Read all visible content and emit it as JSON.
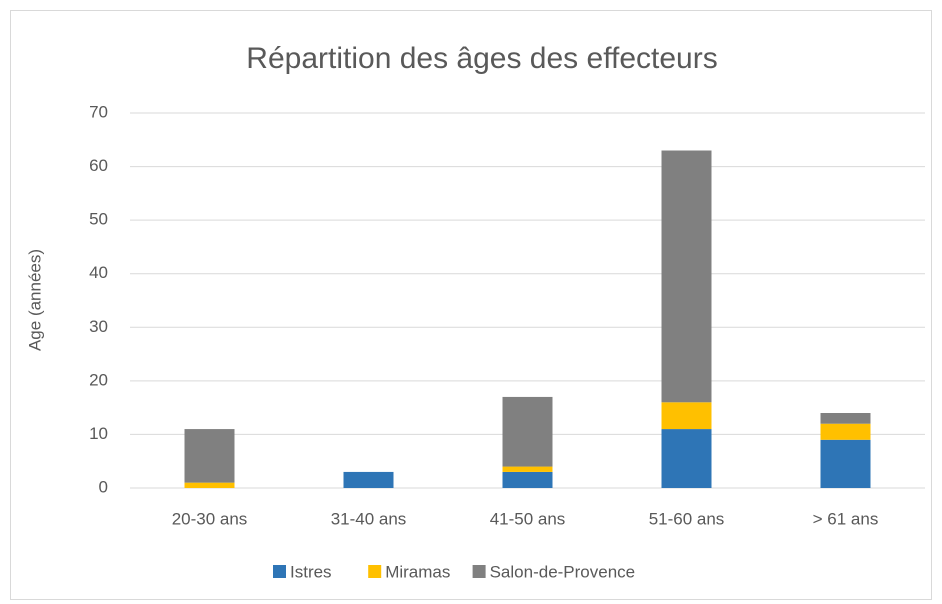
{
  "chart_data": {
    "type": "stacked_bar",
    "title": "Répartition des âges des effecteurs",
    "ylabel": "Age (années)",
    "categories": [
      "20-30 ans",
      "31-40 ans",
      "41-50 ans",
      "51-60 ans",
      "> 61 ans"
    ],
    "series": [
      {
        "name": "Istres",
        "color": "#2e75b6",
        "values": [
          0,
          3,
          3,
          11,
          9
        ]
      },
      {
        "name": "Miramas",
        "color": "#ffc000",
        "values": [
          1,
          0,
          1,
          5,
          3
        ]
      },
      {
        "name": "Salon-de-Provence",
        "color": "#808080",
        "values": [
          10,
          0,
          13,
          47,
          2
        ]
      }
    ],
    "ylim": [
      0,
      70
    ],
    "yticks": [
      0,
      10,
      20,
      30,
      40,
      50,
      60,
      70
    ],
    "grid": true,
    "legend": "bottom"
  }
}
